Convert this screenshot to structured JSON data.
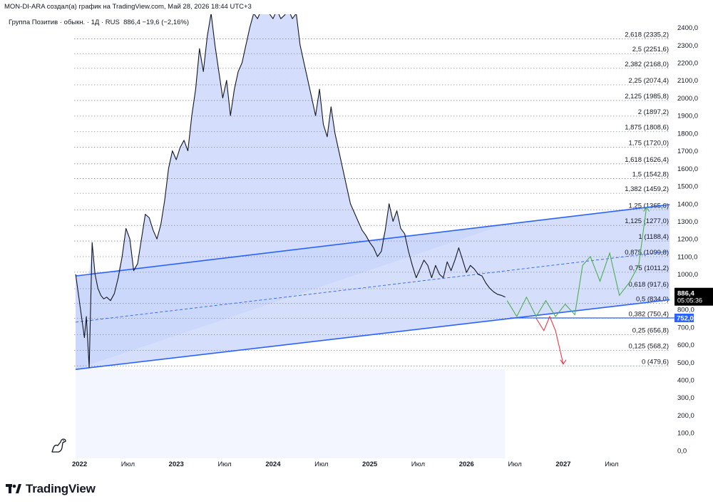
{
  "header": {
    "caption": "MON-DI-ARA создал(а) график на TradingView.com, Май 28, 2026 18:44 UTC+3",
    "symbol_title": "Группа Позитив · обыкн. · 1Д · RUS",
    "last_value": "886,4",
    "change": "−19,6 (−2,16%)"
  },
  "branding": {
    "logo_text": "TradingView",
    "logo_icon": "tradingview-logo-icon",
    "watermark_icon": "dino-icon"
  },
  "chart_data": {
    "type": "line",
    "title": "Группа Позитив · обыкн. · 1Д · RUS",
    "ylim": [
      0,
      2450
    ],
    "y_ticks": [
      "0,0",
      "100,0",
      "200,0",
      "300,0",
      "400,0",
      "500,0",
      "600,0",
      "700,0",
      "800,0",
      "900,0",
      "1000,0",
      "1100,0",
      "1200,0",
      "1300,0",
      "1400,0",
      "1500,0",
      "1600,0",
      "1700,0",
      "1800,0",
      "1900,0",
      "2000,0",
      "2100,0",
      "2200,0",
      "2300,0",
      "2400,0"
    ],
    "x_ticks": [
      {
        "label": "2022",
        "t": 2022.0
      },
      {
        "label": "Июл",
        "t": 2022.5
      },
      {
        "label": "2023",
        "t": 2023.0
      },
      {
        "label": "Июл",
        "t": 2023.5
      },
      {
        "label": "2024",
        "t": 2024.0
      },
      {
        "label": "Июл",
        "t": 2024.5
      },
      {
        "label": "2025",
        "t": 2025.0
      },
      {
        "label": "Июл",
        "t": 2025.5
      },
      {
        "label": "2026",
        "t": 2026.0
      },
      {
        "label": "Июл",
        "t": 2026.5
      },
      {
        "label": "2027",
        "t": 2027.0
      },
      {
        "label": "Июл",
        "t": 2027.5
      }
    ],
    "price_series": {
      "name": "Группа Позитив · обыкн.",
      "t": [
        2021.96,
        2021.99,
        2022.02,
        2022.05,
        2022.07,
        2022.1,
        2022.13,
        2022.16,
        2022.19,
        2022.22,
        2022.25,
        2022.28,
        2022.32,
        2022.36,
        2022.4,
        2022.44,
        2022.48,
        2022.52,
        2022.56,
        2022.6,
        2022.64,
        2022.68,
        2022.72,
        2022.76,
        2022.8,
        2022.84,
        2022.88,
        2022.92,
        2022.96,
        2023.0,
        2023.04,
        2023.08,
        2023.12,
        2023.16,
        2023.2,
        2023.24,
        2023.28,
        2023.32,
        2023.36,
        2023.4,
        2023.44,
        2023.48,
        2023.52,
        2023.56,
        2023.6,
        2023.64,
        2023.68,
        2023.72,
        2023.76,
        2023.8,
        2023.84,
        2023.88,
        2023.92,
        2023.96,
        2024.0,
        2024.04,
        2024.08,
        2024.12,
        2024.16,
        2024.2,
        2024.24,
        2024.28,
        2024.32,
        2024.36,
        2024.4,
        2024.44,
        2024.48,
        2024.52,
        2024.56,
        2024.6,
        2024.64,
        2024.68,
        2024.72,
        2024.76,
        2024.8,
        2024.84,
        2024.88,
        2024.92,
        2024.96,
        2025.0,
        2025.04,
        2025.08,
        2025.12,
        2025.16,
        2025.2,
        2025.24,
        2025.28,
        2025.32,
        2025.36,
        2025.4,
        2025.44,
        2025.48,
        2025.52,
        2025.56,
        2025.6,
        2025.64,
        2025.68,
        2025.72,
        2025.76,
        2025.8,
        2025.84,
        2025.88,
        2025.92,
        2025.96,
        2026.0,
        2026.04,
        2026.08,
        2026.12,
        2026.16,
        2026.2,
        2026.24,
        2026.28,
        2026.32,
        2026.36,
        2026.4
      ],
      "values": [
        1000,
        880,
        760,
        640,
        760,
        470,
        1180,
        1000,
        920,
        880,
        860,
        870,
        850,
        890,
        980,
        1100,
        1260,
        1200,
        1020,
        1060,
        1200,
        1340,
        1320,
        1250,
        1200,
        1280,
        1420,
        1600,
        1700,
        1650,
        1720,
        1760,
        1700,
        1900,
        2050,
        2280,
        2150,
        2350,
        2480,
        2300,
        2150,
        2000,
        2100,
        1900,
        2050,
        2150,
        2200,
        2300,
        2400,
        2480,
        2450,
        2500,
        2500,
        2480,
        2450,
        2500,
        2450,
        2470,
        2500,
        2450,
        2480,
        2300,
        2200,
        2100,
        2000,
        1900,
        2050,
        1850,
        1780,
        1950,
        1800,
        1700,
        1600,
        1500,
        1400,
        1350,
        1300,
        1250,
        1220,
        1180,
        1150,
        1100,
        1130,
        1250,
        1400,
        1300,
        1360,
        1260,
        1230,
        1130,
        1050,
        980,
        1030,
        1080,
        1050,
        980,
        1050,
        1000,
        980,
        1070,
        1020,
        1080,
        1150,
        1080,
        1010,
        1050,
        1030,
        1000,
        990,
        950,
        920,
        900,
        886,
        880,
        870
      ],
      "last": 886.4,
      "last_time_label": "05:05:36"
    },
    "channel": {
      "upper": {
        "t0": 2021.96,
        "v0": 990,
        "t1": 2028.1,
        "v1": 1395
      },
      "lower": {
        "t0": 2021.96,
        "v0": 460,
        "t1": 2028.1,
        "v1": 855
      },
      "mid": {
        "t0": 2021.96,
        "v0": 728,
        "t1": 2028.1,
        "v1": 1130
      }
    },
    "fib_levels": [
      {
        "ratio": "2,618",
        "value": 2335.2
      },
      {
        "ratio": "2,5",
        "value": 2251.6
      },
      {
        "ratio": "2,382",
        "value": 2168.0
      },
      {
        "ratio": "2,25",
        "value": 2074.4
      },
      {
        "ratio": "2,125",
        "value": 1985.8
      },
      {
        "ratio": "2",
        "value": 1897.2
      },
      {
        "ratio": "1,875",
        "value": 1808.6
      },
      {
        "ratio": "1,75",
        "value": 1720.0
      },
      {
        "ratio": "1,618",
        "value": 1626.4
      },
      {
        "ratio": "1,5",
        "value": 1542.8
      },
      {
        "ratio": "1,382",
        "value": 1459.2
      },
      {
        "ratio": "1,25",
        "value": 1365.6
      },
      {
        "ratio": "1,125",
        "value": 1277.0
      },
      {
        "ratio": "1",
        "value": 1188.4
      },
      {
        "ratio": "0,875",
        "value": 1099.8
      },
      {
        "ratio": "0,75",
        "value": 1011.2
      },
      {
        "ratio": "0,618",
        "value": 917.6
      },
      {
        "ratio": "0,5",
        "value": 834.0
      },
      {
        "ratio": "0,382",
        "value": 750.4
      },
      {
        "ratio": "0,25",
        "value": 656.8
      },
      {
        "ratio": "0,125",
        "value": 568.2
      },
      {
        "ratio": "0",
        "value": 479.6
      }
    ],
    "fib_labels": [
      "2,618 (2335,2)",
      "2,5 (2251,6)",
      "2,382 (2168,0)",
      "2,25 (2074,4)",
      "2,125 (1985,8)",
      "2 (1897,2)",
      "1,875 (1808,6)",
      "1,75 (1720,0)",
      "1,618 (1626,4)",
      "1,5 (1542,8)",
      "1,382 (1459,2)",
      "1,25 (1365,6)",
      "1,125 (1277,0)",
      "1 (1188,4)",
      "0,875 (1099,8)",
      "0,75 (1011,2)",
      "0,618 (917,6)",
      "0,5 (834,0)",
      "0,382 (750,4)",
      "0,25 (656,8)",
      "0,125 (568,2)",
      "0 (479,6)"
    ],
    "horizontal_line": {
      "value": 752.0,
      "label": "752,0",
      "color": "#2962ff"
    },
    "last_price_label": "886,4",
    "forecast_bull": {
      "color": "#4caf50",
      "t": [
        2026.42,
        2026.52,
        2026.62,
        2026.72,
        2026.82,
        2026.92,
        2027.02,
        2027.12,
        2027.2,
        2027.28,
        2027.38,
        2027.48,
        2027.58,
        2027.68,
        2027.78,
        2027.86
      ],
      "values": [
        850,
        760,
        870,
        760,
        850,
        760,
        830,
        770,
        1050,
        1100,
        960,
        1120,
        880,
        950,
        1050,
        1380
      ]
    },
    "forecast_bear": {
      "color": "#f23645",
      "t": [
        2026.72,
        2026.8,
        2026.86,
        2026.92,
        2027.0
      ],
      "values": [
        750,
        680,
        760,
        680,
        490
      ]
    },
    "colors": {
      "line": "#131722",
      "channel": "#2962ff",
      "fill": "#c9d6fb",
      "axis_text": "#131722"
    }
  }
}
